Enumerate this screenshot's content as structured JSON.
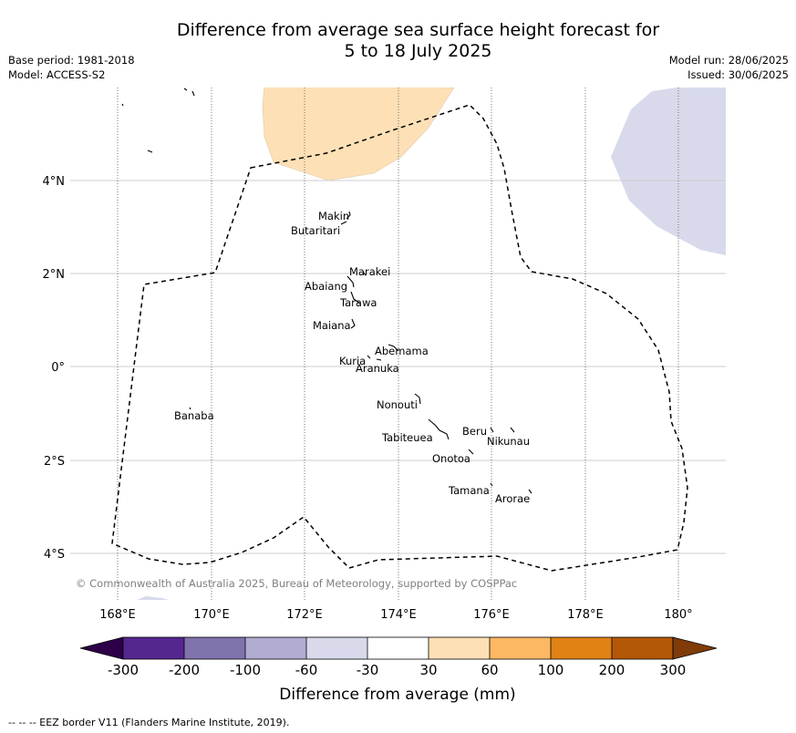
{
  "header": {
    "title_line1": "Difference from average sea surface height forecast for",
    "title_line2": "5 to 18 July 2025",
    "base_period": "Base period: 1981-2018",
    "model": "Model: ACCESS-S2",
    "model_run": "Model run: 28/06/2025",
    "issued": "Issued: 30/06/2025"
  },
  "map": {
    "x_ticks": [
      "168°E",
      "170°E",
      "172°E",
      "174°E",
      "176°E",
      "178°E",
      "180°"
    ],
    "y_ticks": [
      "4°N",
      "2°N",
      "0°",
      "2°S",
      "4°S"
    ],
    "islands": [
      {
        "name": "Makin"
      },
      {
        "name": "Butaritari"
      },
      {
        "name": "Marakei"
      },
      {
        "name": "Abaiang"
      },
      {
        "name": "Tarawa"
      },
      {
        "name": "Maiana"
      },
      {
        "name": "Abemama"
      },
      {
        "name": "Kuria"
      },
      {
        "name": "Aranuka"
      },
      {
        "name": "Nonouti"
      },
      {
        "name": "Banaba"
      },
      {
        "name": "Beru"
      },
      {
        "name": "Nikunau"
      },
      {
        "name": "Tabiteuea"
      },
      {
        "name": "Onotoa"
      },
      {
        "name": "Tamana"
      },
      {
        "name": "Arorae"
      }
    ],
    "copyright": "© Commonwealth of Australia 2025, Bureau of Meteorology, supported by COSPPac",
    "colors": {
      "light_orange": "#fde0b6",
      "light_purple": "#d8d8ea",
      "eez_line": "#000000"
    }
  },
  "colorbar": {
    "title": "Difference from average (mm)",
    "labels": [
      "-300",
      "-200",
      "-100",
      "-60",
      "-30",
      "30",
      "60",
      "100",
      "200",
      "300"
    ],
    "colors": {
      "below": "#2d0047",
      "bins": [
        "#54278f",
        "#8073ac",
        "#b2abd2",
        "#d8daeb",
        "#ffffff",
        "#fee0b6",
        "#fdb863",
        "#e08214",
        "#b35806"
      ],
      "above": "#7f3b08"
    }
  },
  "footer": {
    "text": "--  --  -- EEZ border V11 (Flanders Marine Institute, 2019)."
  }
}
